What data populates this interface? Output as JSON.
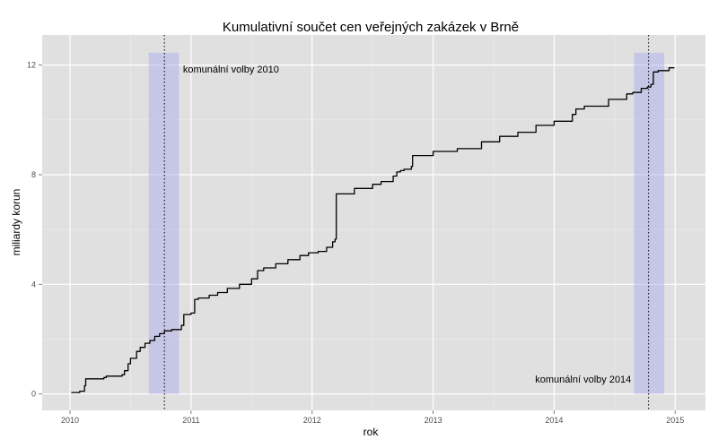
{
  "chart_data": {
    "type": "line",
    "title": "Kumulativní součet cen veřejných zakázek v Brně",
    "xlabel": "rok",
    "ylabel": "miliardy korun",
    "xlim": [
      2009.77,
      2015.25
    ],
    "ylim": [
      -0.6,
      13.1
    ],
    "grid": true,
    "xticks": [
      2010,
      2011,
      2012,
      2013,
      2014,
      2015
    ],
    "xtick_labels": [
      "2010",
      "2011",
      "2012",
      "2013",
      "2014",
      "2015"
    ],
    "yticks": [
      0,
      4,
      8,
      12
    ],
    "ytick_labels": [
      "0",
      "4",
      "8",
      "12"
    ],
    "series": [
      {
        "color": "#000000",
        "x": [
          2010.01,
          2010.08,
          2010.12,
          2010.13,
          2010.28,
          2010.3,
          2010.43,
          2010.45,
          2010.48,
          2010.5,
          2010.55,
          2010.58,
          2010.62,
          2010.66,
          2010.7,
          2010.74,
          2010.78,
          2010.84,
          2010.92,
          2010.94,
          2011.0,
          2011.03,
          2011.06,
          2011.15,
          2011.22,
          2011.3,
          2011.4,
          2011.5,
          2011.55,
          2011.6,
          2011.7,
          2011.8,
          2011.9,
          2011.97,
          2012.05,
          2012.12,
          2012.17,
          2012.19,
          2012.2,
          2012.35,
          2012.5,
          2012.57,
          2012.67,
          2012.7,
          2012.73,
          2012.76,
          2012.82,
          2012.83,
          2013.0,
          2013.2,
          2013.4,
          2013.55,
          2013.7,
          2013.85,
          2014.0,
          2014.15,
          2014.18,
          2014.25,
          2014.45,
          2014.6,
          2014.65,
          2014.72,
          2014.77,
          2014.8,
          2014.82,
          2014.86,
          2014.95,
          2014.99
        ],
        "y": [
          0.05,
          0.1,
          0.3,
          0.55,
          0.6,
          0.65,
          0.7,
          0.85,
          1.1,
          1.3,
          1.55,
          1.7,
          1.85,
          1.95,
          2.1,
          2.2,
          2.3,
          2.35,
          2.5,
          2.9,
          2.95,
          3.45,
          3.5,
          3.6,
          3.7,
          3.85,
          4.0,
          4.2,
          4.5,
          4.6,
          4.75,
          4.9,
          5.05,
          5.15,
          5.2,
          5.35,
          5.55,
          5.65,
          7.3,
          7.5,
          7.65,
          7.75,
          7.95,
          8.1,
          8.15,
          8.2,
          8.3,
          8.7,
          8.85,
          8.95,
          9.2,
          9.4,
          9.55,
          9.8,
          9.95,
          10.2,
          10.4,
          10.5,
          10.75,
          10.95,
          11.0,
          11.15,
          11.2,
          11.3,
          11.75,
          11.8,
          11.9,
          11.92
        ]
      }
    ],
    "shaded_regions": [
      {
        "x0": 2010.65,
        "x1": 2010.9,
        "y0": 0.0,
        "y1": 12.45,
        "color": "#a7a7ee"
      },
      {
        "x0": 2014.66,
        "x1": 2014.91,
        "y0": 0.0,
        "y1": 12.45,
        "color": "#a7a7ee"
      }
    ],
    "vlines": [
      2010.78,
      2014.78
    ],
    "annotations": [
      {
        "text": "komunální volby 2010",
        "x": 2011.33,
        "y": 11.85
      },
      {
        "text": "komunální volby 2014",
        "x": 2014.24,
        "y": 0.55
      }
    ],
    "colors": {
      "panel_background": "#e0e0e0",
      "grid_major": "#ffffff",
      "grid_minor": "#ededed",
      "line": "#000000",
      "shade": "#a7a7ee"
    }
  }
}
